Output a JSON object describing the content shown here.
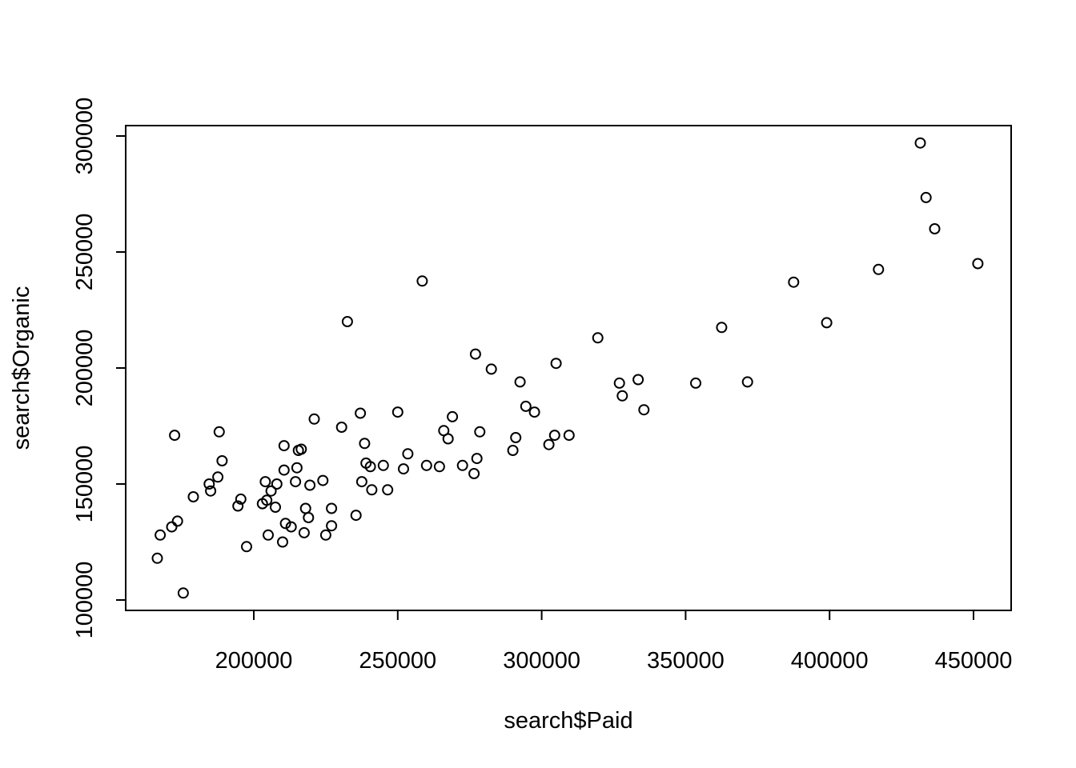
{
  "chart_data": {
    "type": "scatter",
    "title": "",
    "xlabel": "search$Paid",
    "ylabel": "search$Organic",
    "xlim": [
      155000,
      462000
    ],
    "ylim": [
      95000,
      305000
    ],
    "x_ticks": [
      200000,
      250000,
      300000,
      350000,
      400000,
      450000
    ],
    "y_ticks": [
      100000,
      150000,
      200000,
      250000,
      300000
    ],
    "x_tick_labels": [
      "200000",
      "250000",
      "300000",
      "350000",
      "400000",
      "450000"
    ],
    "y_tick_labels": [
      "100000",
      "150000",
      "200000",
      "250000",
      "300000"
    ],
    "grid": false,
    "legend": "none",
    "marker": "open-circle",
    "colors": {
      "points": "#000000",
      "axes": "#000000",
      "background": "#ffffff"
    },
    "points": [
      [
        166500,
        118000
      ],
      [
        167500,
        128000
      ],
      [
        171500,
        131500
      ],
      [
        172500,
        171000
      ],
      [
        173500,
        134000
      ],
      [
        175500,
        103000
      ],
      [
        179000,
        144500
      ],
      [
        184500,
        150000
      ],
      [
        185000,
        147000
      ],
      [
        187500,
        153000
      ],
      [
        188000,
        172500
      ],
      [
        189000,
        160000
      ],
      [
        194500,
        140500
      ],
      [
        195500,
        143500
      ],
      [
        197500,
        123000
      ],
      [
        203000,
        141500
      ],
      [
        204000,
        151000
      ],
      [
        204500,
        143000
      ],
      [
        205000,
        128000
      ],
      [
        206000,
        147000
      ],
      [
        207500,
        140000
      ],
      [
        208000,
        150000
      ],
      [
        210000,
        125000
      ],
      [
        210500,
        156000
      ],
      [
        210500,
        166500
      ],
      [
        211000,
        133000
      ],
      [
        213000,
        131500
      ],
      [
        214500,
        151000
      ],
      [
        215000,
        157000
      ],
      [
        215500,
        164500
      ],
      [
        216500,
        165000
      ],
      [
        217500,
        129000
      ],
      [
        218000,
        139500
      ],
      [
        219000,
        135500
      ],
      [
        219500,
        149500
      ],
      [
        221000,
        178000
      ],
      [
        224000,
        151500
      ],
      [
        225000,
        128000
      ],
      [
        227000,
        132000
      ],
      [
        227000,
        139500
      ],
      [
        230500,
        174500
      ],
      [
        232500,
        220000
      ],
      [
        235500,
        136500
      ],
      [
        237000,
        180500
      ],
      [
        237500,
        151000
      ],
      [
        238500,
        167500
      ],
      [
        239000,
        159000
      ],
      [
        240500,
        157500
      ],
      [
        241000,
        147500
      ],
      [
        245000,
        158000
      ],
      [
        246500,
        147500
      ],
      [
        250000,
        181000
      ],
      [
        252000,
        156500
      ],
      [
        253500,
        163000
      ],
      [
        258500,
        237500
      ],
      [
        260000,
        158000
      ],
      [
        264500,
        157500
      ],
      [
        266000,
        173000
      ],
      [
        267500,
        169500
      ],
      [
        269000,
        179000
      ],
      [
        272500,
        158000
      ],
      [
        276500,
        154500
      ],
      [
        277000,
        206000
      ],
      [
        277500,
        161000
      ],
      [
        278500,
        172500
      ],
      [
        282500,
        199500
      ],
      [
        290000,
        164500
      ],
      [
        291000,
        170000
      ],
      [
        292500,
        194000
      ],
      [
        294500,
        183500
      ],
      [
        297500,
        181000
      ],
      [
        302500,
        167000
      ],
      [
        304500,
        171000
      ],
      [
        305000,
        202000
      ],
      [
        309500,
        171000
      ],
      [
        319500,
        213000
      ],
      [
        327000,
        193500
      ],
      [
        328000,
        188000
      ],
      [
        333500,
        195000
      ],
      [
        335500,
        182000
      ],
      [
        353500,
        193500
      ],
      [
        362500,
        217500
      ],
      [
        371500,
        194000
      ],
      [
        387500,
        237000
      ],
      [
        399000,
        219500
      ],
      [
        417000,
        242500
      ],
      [
        431500,
        297000
      ],
      [
        433500,
        273500
      ],
      [
        436500,
        260000
      ],
      [
        451500,
        245000
      ]
    ]
  }
}
